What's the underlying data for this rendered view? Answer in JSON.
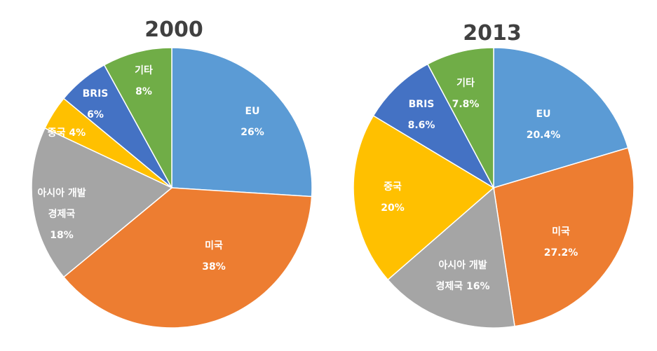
{
  "chart_data": [
    {
      "type": "pie",
      "title": "2000",
      "slices": [
        {
          "lines": [
            "EU",
            "26%"
          ],
          "value": 26,
          "color": "#5B9BD5"
        },
        {
          "lines": [
            "미국",
            "38%"
          ],
          "value": 38,
          "color": "#ED7D31"
        },
        {
          "lines": [
            "아시아 개발",
            "경제국",
            "18%"
          ],
          "value": 18,
          "color": "#A5A5A5"
        },
        {
          "lines": [
            "중국 4%"
          ],
          "value": 4,
          "color": "#FFC000"
        },
        {
          "lines": [
            "BRIS",
            "6%"
          ],
          "value": 6,
          "color": "#4472C4"
        },
        {
          "lines": [
            "기타",
            "8%"
          ],
          "value": 8,
          "color": "#70AD47"
        }
      ]
    },
    {
      "type": "pie",
      "title": "2013",
      "slices": [
        {
          "lines": [
            "EU",
            "20.4%"
          ],
          "value": 20.4,
          "color": "#5B9BD5"
        },
        {
          "lines": [
            "미국",
            "27.2%"
          ],
          "value": 27.2,
          "color": "#ED7D31"
        },
        {
          "lines": [
            "아시아 개발",
            "경제국 16%"
          ],
          "value": 16,
          "color": "#A5A5A5"
        },
        {
          "lines": [
            "중국",
            "20%"
          ],
          "value": 20,
          "color": "#FFC000"
        },
        {
          "lines": [
            "BRIS",
            "8.6%"
          ],
          "value": 8.6,
          "color": "#4472C4"
        },
        {
          "lines": [
            "기타",
            "7.8%"
          ],
          "value": 7.8,
          "color": "#70AD47"
        }
      ]
    }
  ]
}
